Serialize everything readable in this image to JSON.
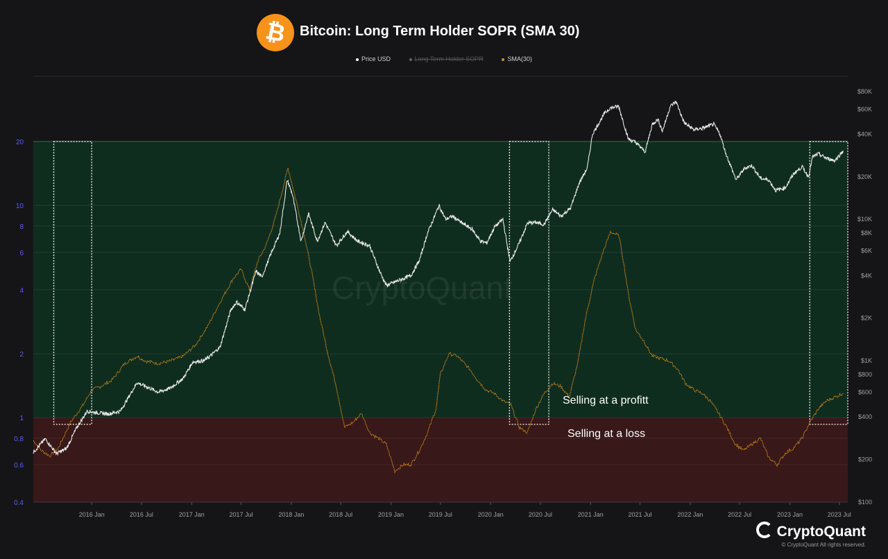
{
  "header": {
    "title": "Bitcoin: Long Term Holder SOPR (SMA 30)",
    "logo_glyph": "₿",
    "legend": [
      {
        "label": "Price USD",
        "color": "#ffffff",
        "active": true
      },
      {
        "label": "Long Term Holder SOPR",
        "color": "#666666",
        "active": false
      },
      {
        "label": "SMA(30)",
        "color": "#e08a1e",
        "active": true
      }
    ]
  },
  "branding": {
    "name": "CryptoQuant",
    "copyright": "© CryptoQuant All rights reserved.",
    "watermark": "CryptoQuant"
  },
  "colors": {
    "profit_zone": "#0f2d1f",
    "loss_zone": "#381818",
    "price_line": "#e8e8e8",
    "sma_line": "#d08a1c",
    "left_axis_text": "#5c5cf0",
    "axis_text": "#a0a0a0"
  },
  "chart_data": {
    "type": "line",
    "x_range": [
      "2015-06-01",
      "2023-08-01"
    ],
    "x_ticks": [
      "2016 Jan",
      "2016 Jul",
      "2017 Jan",
      "2017 Jul",
      "2018 Jan",
      "2018 Jul",
      "2019 Jan",
      "2019 Jul",
      "2020 Jan",
      "2020 Jul",
      "2021 Jan",
      "2021 Jul",
      "2022 Jan",
      "2022 Jul",
      "2023 Jan",
      "2023 Jul"
    ],
    "x_tick_dates": [
      "2016-01-01",
      "2016-07-01",
      "2017-01-01",
      "2017-07-01",
      "2018-01-01",
      "2018-07-01",
      "2019-01-01",
      "2019-07-01",
      "2020-01-01",
      "2020-07-01",
      "2021-01-01",
      "2021-07-01",
      "2022-01-01",
      "2022-07-01",
      "2023-01-01",
      "2023-07-01"
    ],
    "left_axis": {
      "scale": "log",
      "range": [
        0.4,
        20
      ],
      "ticks": [
        0.4,
        0.6,
        0.8,
        1,
        2,
        4,
        6,
        8,
        10,
        20
      ],
      "tick_labels": [
        "0.4",
        "0.6",
        "0.8",
        "1",
        "2",
        "4",
        "6",
        "8",
        "10",
        "20"
      ]
    },
    "right_axis": {
      "scale": "log",
      "range": [
        100,
        80000
      ],
      "ticks": [
        100,
        200,
        400,
        600,
        800,
        1000,
        2000,
        4000,
        6000,
        8000,
        10000,
        20000,
        40000,
        60000,
        80000
      ],
      "tick_labels": [
        "$100",
        "$200",
        "$400",
        "$600",
        "$800",
        "$1K",
        "$2K",
        "$4K",
        "$6K",
        "$8K",
        "$10K",
        "$20K",
        "$40K",
        "$60K",
        "$80K"
      ]
    },
    "grid": true,
    "zones": [
      {
        "label": "Selling at a profitt",
        "from": 1,
        "to": 20
      },
      {
        "label": "Selling at a loss",
        "from": 0.4,
        "to": 1
      }
    ],
    "highlight_periods": [
      {
        "start": "2015-08-15",
        "end": "2016-01-01",
        "low": 0.93,
        "high": 20
      },
      {
        "start": "2020-03-10",
        "end": "2020-08-01",
        "low": 0.93,
        "high": 20
      },
      {
        "start": "2023-03-15",
        "end": "2023-08-01",
        "low": 0.93,
        "high": 20
      }
    ],
    "series": [
      {
        "name": "Price USD",
        "axis": "right",
        "x": [
          "2015-06-01",
          "2015-07-15",
          "2015-08-25",
          "2015-10-01",
          "2015-11-05",
          "2015-12-15",
          "2016-01-15",
          "2016-03-01",
          "2016-04-15",
          "2016-06-15",
          "2016-07-15",
          "2016-09-01",
          "2016-10-15",
          "2016-12-01",
          "2017-01-05",
          "2017-02-15",
          "2017-03-15",
          "2017-04-15",
          "2017-05-25",
          "2017-06-15",
          "2017-07-15",
          "2017-08-25",
          "2017-09-15",
          "2017-10-20",
          "2017-11-20",
          "2017-12-17",
          "2018-01-05",
          "2018-02-06",
          "2018-03-05",
          "2018-04-06",
          "2018-05-05",
          "2018-06-15",
          "2018-07-25",
          "2018-09-01",
          "2018-10-15",
          "2018-11-20",
          "2018-12-15",
          "2019-01-15",
          "2019-02-15",
          "2019-03-15",
          "2019-04-15",
          "2019-05-15",
          "2019-06-26",
          "2019-07-20",
          "2019-08-15",
          "2019-09-15",
          "2019-10-25",
          "2019-11-25",
          "2019-12-18",
          "2020-01-15",
          "2020-02-15",
          "2020-03-12",
          "2020-04-15",
          "2020-05-15",
          "2020-06-15",
          "2020-07-15",
          "2020-08-15",
          "2020-09-15",
          "2020-10-20",
          "2020-11-20",
          "2020-12-20",
          "2021-01-08",
          "2021-02-21",
          "2021-03-13",
          "2021-04-14",
          "2021-05-19",
          "2021-06-15",
          "2021-07-20",
          "2021-08-15",
          "2021-09-05",
          "2021-09-21",
          "2021-10-20",
          "2021-11-10",
          "2021-12-10",
          "2022-01-15",
          "2022-02-15",
          "2022-03-28",
          "2022-04-20",
          "2022-05-12",
          "2022-06-18",
          "2022-07-20",
          "2022-08-15",
          "2022-09-15",
          "2022-10-15",
          "2022-11-10",
          "2022-12-15",
          "2023-01-15",
          "2023-02-15",
          "2023-03-10",
          "2023-03-25",
          "2023-04-15",
          "2023-05-15",
          "2023-06-15",
          "2023-07-15"
        ],
        "values": [
          225,
          280,
          220,
          240,
          330,
          440,
          430,
          420,
          440,
          700,
          660,
          600,
          640,
          750,
          980,
          1000,
          1100,
          1250,
          2300,
          2600,
          2300,
          4300,
          3900,
          5800,
          8000,
          19000,
          15000,
          7000,
          11000,
          7000,
          9500,
          6500,
          8200,
          7000,
          6500,
          4300,
          3400,
          3600,
          3800,
          4000,
          5100,
          8000,
          12500,
          10000,
          10500,
          9500,
          8500,
          7000,
          6800,
          8800,
          10000,
          5000,
          6800,
          9400,
          9500,
          9200,
          11700,
          10500,
          12000,
          18000,
          23000,
          40000,
          56000,
          61000,
          63000,
          37000,
          35000,
          30000,
          47000,
          51000,
          42000,
          63000,
          68000,
          48000,
          43000,
          44000,
          47000,
          40000,
          29000,
          19000,
          23000,
          24000,
          19500,
          19000,
          16000,
          16700,
          21000,
          23500,
          20000,
          27500,
          29000,
          27000,
          26000,
          30500
        ]
      },
      {
        "name": "SMA(30)",
        "axis": "left",
        "x": [
          "2015-06-01",
          "2015-07-01",
          "2015-08-01",
          "2015-09-01",
          "2015-10-15",
          "2015-12-01",
          "2016-01-01",
          "2016-02-01",
          "2016-03-15",
          "2016-05-01",
          "2016-06-15",
          "2016-07-15",
          "2016-09-01",
          "2016-10-15",
          "2016-12-01",
          "2017-01-15",
          "2017-03-01",
          "2017-04-15",
          "2017-06-01",
          "2017-07-01",
          "2017-08-01",
          "2017-09-01",
          "2017-10-01",
          "2017-11-01",
          "2017-12-01",
          "2017-12-20",
          "2018-01-15",
          "2018-02-15",
          "2018-03-15",
          "2018-04-15",
          "2018-05-15",
          "2018-06-15",
          "2018-07-15",
          "2018-08-15",
          "2018-09-15",
          "2018-10-15",
          "2018-11-15",
          "2018-12-15",
          "2019-01-15",
          "2019-02-15",
          "2019-03-15",
          "2019-04-15",
          "2019-05-15",
          "2019-06-15",
          "2019-07-01",
          "2019-08-01",
          "2019-09-01",
          "2019-10-15",
          "2019-11-15",
          "2019-12-15",
          "2020-01-15",
          "2020-02-15",
          "2020-03-15",
          "2020-04-15",
          "2020-05-15",
          "2020-06-15",
          "2020-07-15",
          "2020-08-15",
          "2020-09-15",
          "2020-10-15",
          "2020-11-15",
          "2020-12-15",
          "2021-01-15",
          "2021-02-15",
          "2021-03-15",
          "2021-04-15",
          "2021-05-01",
          "2021-05-20",
          "2021-06-15",
          "2021-07-15",
          "2021-08-15",
          "2021-09-15",
          "2021-10-15",
          "2021-11-15",
          "2021-12-15",
          "2022-01-15",
          "2022-02-15",
          "2022-03-15",
          "2022-04-15",
          "2022-05-15",
          "2022-06-15",
          "2022-07-15",
          "2022-08-15",
          "2022-09-15",
          "2022-10-15",
          "2022-11-15",
          "2022-12-15",
          "2023-01-15",
          "2023-02-15",
          "2023-03-15",
          "2023-04-15",
          "2023-05-15",
          "2023-06-15",
          "2023-07-15"
        ],
        "values": [
          0.78,
          0.7,
          0.66,
          0.72,
          0.95,
          1.15,
          1.35,
          1.4,
          1.5,
          1.8,
          1.95,
          1.85,
          1.8,
          1.85,
          1.95,
          2.2,
          2.7,
          3.5,
          4.5,
          5.0,
          4.0,
          5.5,
          6.5,
          8.5,
          12,
          15,
          11,
          7.5,
          5.0,
          3.0,
          2.0,
          1.4,
          0.9,
          0.95,
          1.05,
          0.85,
          0.8,
          0.75,
          0.56,
          0.6,
          0.6,
          0.7,
          0.85,
          1.1,
          1.6,
          2.0,
          1.95,
          1.7,
          1.5,
          1.35,
          1.3,
          1.2,
          1.15,
          0.9,
          0.85,
          1.1,
          1.3,
          1.45,
          1.4,
          1.25,
          1.8,
          3.0,
          4.5,
          6.0,
          7.5,
          7.2,
          5.5,
          3.8,
          2.6,
          2.3,
          1.95,
          1.9,
          1.85,
          1.7,
          1.45,
          1.35,
          1.3,
          1.2,
          1.05,
          0.9,
          0.75,
          0.7,
          0.75,
          0.8,
          0.65,
          0.6,
          0.68,
          0.72,
          0.8,
          0.95,
          1.1,
          1.2,
          1.25,
          1.3
        ]
      }
    ]
  }
}
